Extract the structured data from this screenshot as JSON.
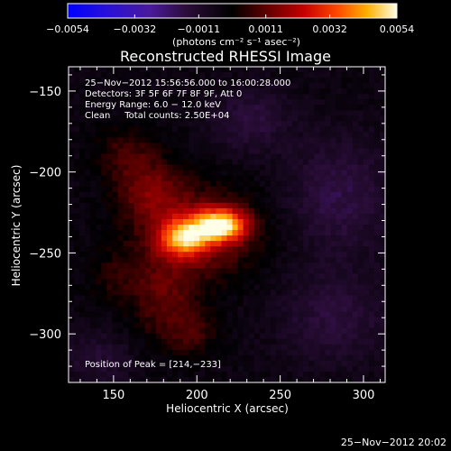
{
  "chart_data": {
    "type": "heatmap",
    "title": "Reconstructed RHESSI Image",
    "xlabel": "Heliocentric X (arcsec)",
    "ylabel": "Heliocentric Y (arcsec)",
    "xlim": [
      123,
      313
    ],
    "ylim": [
      -330,
      -135
    ],
    "x_ticks": [
      {
        "value": 150,
        "label": "150"
      },
      {
        "value": 200,
        "label": "200"
      },
      {
        "value": 250,
        "label": "250"
      },
      {
        "value": 300,
        "label": "300"
      }
    ],
    "y_ticks": [
      {
        "value": -150,
        "label": "−150"
      },
      {
        "value": -200,
        "label": "−200"
      },
      {
        "value": -250,
        "label": "−250"
      },
      {
        "value": -300,
        "label": "−300"
      }
    ],
    "colorbar": {
      "min": -0.0054,
      "max": 0.0054,
      "unit_label": "(photons cm⁻² s⁻¹ asec⁻²)",
      "ticks": [
        {
          "value": -0.0054,
          "label": "−0.0054"
        },
        {
          "value": -0.0032,
          "label": "−0.0032"
        },
        {
          "value": -0.0011,
          "label": "−0.0011"
        },
        {
          "value": 0.0011,
          "label": "0.0011"
        },
        {
          "value": 0.0032,
          "label": "0.0032"
        },
        {
          "value": 0.0054,
          "label": "0.0054"
        }
      ]
    },
    "info_lines": [
      "25−Nov−2012 15:56:56.000 to 16:00:28.000",
      "Detectors: 3F 5F 6F 7F 8F 9F, Att 0",
      "Energy Range: 6.0 − 12.0 keV",
      "Clean     Total counts: 2.50E+04"
    ],
    "peak_label": "Position of Peak = [214,−233]",
    "peak": {
      "x": 214,
      "y": -233,
      "value": 0.0054
    },
    "sources": [
      {
        "x": 214,
        "y": -233,
        "sx": 11,
        "sy": 7,
        "amp": 0.0048
      },
      {
        "x": 192,
        "y": -241,
        "sx": 10,
        "sy": 8,
        "amp": 0.0036
      },
      {
        "x": 200,
        "y": -238,
        "sx": 26,
        "sy": 20,
        "amp": 0.0019
      },
      {
        "x": 172,
        "y": -212,
        "sx": 14,
        "sy": 13,
        "amp": 0.0015
      },
      {
        "x": 158,
        "y": -188,
        "sx": 13,
        "sy": 12,
        "amp": 0.0011
      },
      {
        "x": 180,
        "y": -280,
        "sx": 14,
        "sy": 18,
        "amp": 0.0013
      },
      {
        "x": 198,
        "y": -300,
        "sx": 12,
        "sy": 10,
        "amp": 0.0009
      },
      {
        "x": 150,
        "y": -265,
        "sx": 12,
        "sy": 12,
        "amp": 0.0007
      },
      {
        "x": 232,
        "y": -168,
        "sx": 16,
        "sy": 14,
        "amp": -0.0011
      },
      {
        "x": 285,
        "y": -215,
        "sx": 22,
        "sy": 25,
        "amp": -0.0012
      },
      {
        "x": 282,
        "y": -290,
        "sx": 24,
        "sy": 20,
        "amp": -0.001
      },
      {
        "x": 140,
        "y": -315,
        "sx": 15,
        "sy": 12,
        "amp": -0.0008
      }
    ]
  },
  "footer": {
    "timestamp": "25−Nov−2012 20:02"
  }
}
